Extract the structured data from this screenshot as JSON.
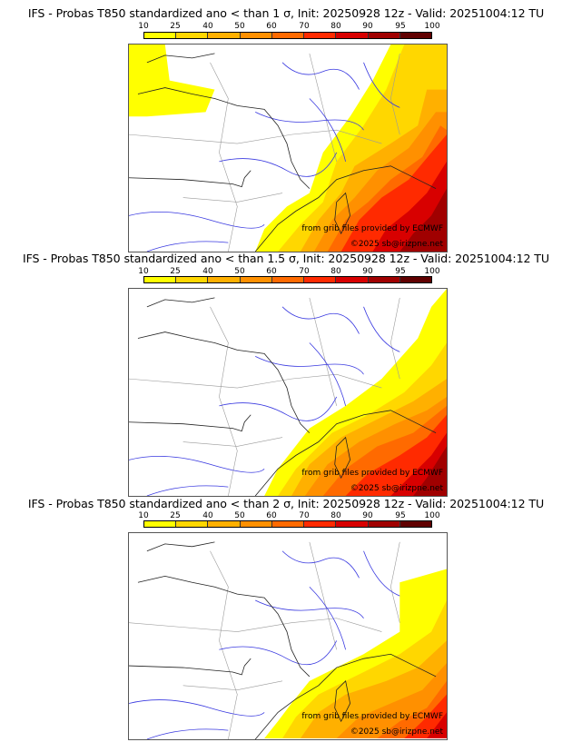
{
  "chart_data": [
    {
      "type": "heatmap",
      "title": "IFS - Probas T850  standardized ano < than 1 σ, Init: 20250928 12z - Valid: 20251004:12 TU",
      "colorbar": {
        "ticks": [
          "10",
          "25",
          "40",
          "50",
          "60",
          "70",
          "80",
          "90",
          "95",
          "100"
        ],
        "colors": [
          "#ffff00",
          "#ffd700",
          "#ffb000",
          "#ff9000",
          "#ff6a00",
          "#ff2a00",
          "#d80000",
          "#a00000",
          "#600000"
        ]
      },
      "description_level": "high probability over SE France, Italy, Corsica; yellow over Brittany/Channel",
      "credits": [
        "from grib files provided by ECMWF",
        "©2025 sb@irizpne.net"
      ]
    },
    {
      "type": "heatmap",
      "title": "IFS - Probas T850  standardized ano < than 1.5 σ, Init: 20250928 12z - Valid: 20251004:12 TU",
      "colorbar": {
        "ticks": [
          "10",
          "25",
          "40",
          "50",
          "60",
          "70",
          "80",
          "90",
          "95",
          "100"
        ],
        "colors": [
          "#ffff00",
          "#ffd700",
          "#ffb000",
          "#ff9000",
          "#ff6a00",
          "#ff2a00",
          "#d80000",
          "#a00000",
          "#600000"
        ]
      },
      "credits": [
        "from grib files provided by ECMWF",
        "©2025 sb@irizpne.net"
      ]
    },
    {
      "type": "heatmap",
      "title": "IFS - Probas T850  standardized ano < than 2 σ, Init: 20250928 12z - Valid: 20251004:12 TU",
      "colorbar": {
        "ticks": [
          "10",
          "25",
          "40",
          "50",
          "60",
          "70",
          "80",
          "90",
          "95",
          "100"
        ],
        "colors": [
          "#ffff00",
          "#ffd700",
          "#ffb000",
          "#ff9000",
          "#ff6a00",
          "#ff2a00",
          "#d80000",
          "#a00000",
          "#600000"
        ]
      },
      "credits": [
        "from grib files provided by ECMWF",
        "©2025 sb@irizpne.net"
      ]
    }
  ]
}
